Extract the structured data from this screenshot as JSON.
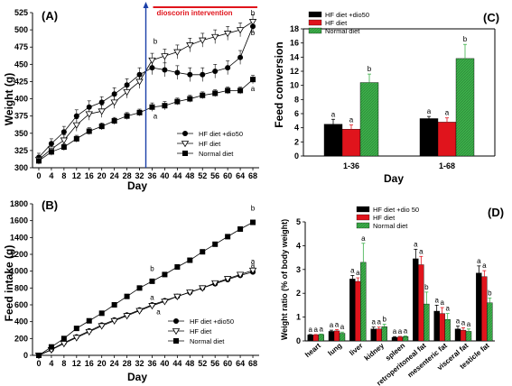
{
  "chart_data": [
    {
      "panel": "(A)",
      "type": "line",
      "xlabel": "Day",
      "ylabel": "Weight (g)",
      "xticks": [
        0,
        4,
        8,
        12,
        16,
        20,
        24,
        28,
        32,
        36,
        40,
        44,
        48,
        52,
        56,
        60,
        64,
        68
      ],
      "ylim": [
        300,
        525
      ],
      "yticks": [
        300,
        325,
        350,
        375,
        400,
        425,
        450,
        475,
        500,
        525
      ],
      "annotation": "dioscorin intervention",
      "intervention_day": 34,
      "legend": [
        "HF diet +dio50",
        "HF diet",
        "Normal diet"
      ],
      "series": [
        {
          "name": "HF diet +dio50",
          "marker": "circle",
          "x": [
            0,
            4,
            8,
            12,
            16,
            20,
            24,
            28,
            32,
            36,
            40,
            44,
            48,
            52,
            56,
            60,
            64,
            68
          ],
          "y": [
            315,
            335,
            352,
            375,
            388,
            395,
            407,
            420,
            435,
            445,
            442,
            438,
            435,
            435,
            440,
            445,
            460,
            505
          ],
          "err": [
            6,
            7,
            8,
            9,
            9,
            8,
            9,
            9,
            10,
            10,
            10,
            10,
            10,
            10,
            10,
            10,
            10,
            10
          ]
        },
        {
          "name": "HF diet",
          "marker": "triangle",
          "x": [
            0,
            4,
            8,
            12,
            16,
            20,
            24,
            28,
            32,
            36,
            40,
            44,
            48,
            52,
            56,
            60,
            64,
            68
          ],
          "y": [
            312,
            327,
            340,
            362,
            378,
            382,
            395,
            410,
            425,
            456,
            462,
            468,
            478,
            485,
            490,
            495,
            500,
            512
          ],
          "err": [
            6,
            7,
            8,
            9,
            9,
            9,
            9,
            9,
            10,
            10,
            10,
            10,
            10,
            10,
            10,
            10,
            10,
            10
          ]
        },
        {
          "name": "Normal diet",
          "marker": "square",
          "x": [
            0,
            4,
            8,
            12,
            16,
            20,
            24,
            28,
            32,
            36,
            40,
            44,
            48,
            52,
            56,
            60,
            64,
            68
          ],
          "y": [
            310,
            323,
            330,
            342,
            353,
            360,
            368,
            375,
            380,
            388,
            390,
            396,
            400,
            405,
            408,
            412,
            412,
            428
          ],
          "err": [
            5,
            5,
            5,
            5,
            5,
            5,
            5,
            5,
            5,
            6,
            6,
            5,
            5,
            5,
            5,
            5,
            5,
            6
          ]
        }
      ],
      "letters": [
        {
          "text": "b",
          "x": 37,
          "y": 480
        },
        {
          "text": "a",
          "x": 37,
          "y": 371
        },
        {
          "text": "b",
          "x": 68,
          "y": 521
        },
        {
          "text": "b",
          "x": 68,
          "y": 492
        },
        {
          "text": "a",
          "x": 68,
          "y": 411
        }
      ]
    },
    {
      "panel": "(B)",
      "type": "line",
      "xlabel": "Day",
      "ylabel": "Feed intake (g)",
      "xticks": [
        0,
        4,
        8,
        12,
        16,
        20,
        24,
        28,
        32,
        36,
        40,
        44,
        48,
        52,
        56,
        60,
        64,
        68
      ],
      "ylim": [
        0,
        1800
      ],
      "yticks": [
        0,
        200,
        400,
        600,
        800,
        1000,
        1200,
        1400,
        1600,
        1800
      ],
      "legend": [
        "HF diet +dio50",
        "HF diet",
        "Normal diet"
      ],
      "series": [
        {
          "name": "HF diet +dio50",
          "marker": "circle",
          "x": [
            0,
            4,
            8,
            12,
            16,
            20,
            24,
            28,
            32,
            36,
            40,
            44,
            48,
            52,
            56,
            60,
            64,
            68
          ],
          "y": [
            0,
            70,
            150,
            220,
            290,
            360,
            420,
            480,
            540,
            600,
            650,
            700,
            750,
            800,
            850,
            900,
            950,
            990
          ]
        },
        {
          "name": "HF diet",
          "marker": "triangle",
          "x": [
            0,
            4,
            8,
            12,
            16,
            20,
            24,
            28,
            32,
            36,
            40,
            44,
            48,
            52,
            56,
            60,
            64,
            68
          ],
          "y": [
            0,
            65,
            140,
            210,
            280,
            350,
            410,
            470,
            530,
            590,
            640,
            700,
            750,
            800,
            860,
            910,
            960,
            1010
          ]
        },
        {
          "name": "Normal diet",
          "marker": "square",
          "x": [
            0,
            4,
            8,
            12,
            16,
            20,
            24,
            28,
            32,
            36,
            40,
            44,
            48,
            52,
            56,
            60,
            64,
            68
          ],
          "y": [
            0,
            100,
            200,
            320,
            410,
            500,
            600,
            700,
            800,
            880,
            960,
            1050,
            1130,
            1230,
            1320,
            1410,
            1500,
            1580
          ]
        }
      ],
      "letters": [
        {
          "text": "b",
          "x": 36,
          "y": 1000
        },
        {
          "text": "a",
          "x": 36,
          "y": 660
        },
        {
          "text": "a",
          "x": 38,
          "y": 490
        },
        {
          "text": "b",
          "x": 68,
          "y": 1720
        },
        {
          "text": "a",
          "x": 68,
          "y": 1090
        },
        {
          "text": "a",
          "x": 68,
          "y": 1040
        }
      ]
    },
    {
      "panel": "(C)",
      "type": "bar",
      "xlabel": "Day",
      "ylabel": "Feed conversion",
      "categories": [
        "1-36",
        "1-68"
      ],
      "ylim": [
        0,
        18
      ],
      "yticks": [
        0,
        2,
        4,
        6,
        8,
        10,
        12,
        14,
        16,
        18
      ],
      "legend": [
        "HF diet +dio50",
        "HF diet",
        "Normal diet"
      ],
      "series": [
        {
          "name": "HF diet +dio50",
          "color": "#000000",
          "values": [
            4.5,
            5.3
          ],
          "err": [
            0.7,
            0.3
          ],
          "letters": [
            "a",
            "a"
          ]
        },
        {
          "name": "HF diet",
          "color": "#e0141c",
          "values": [
            3.8,
            4.8
          ],
          "err": [
            0.6,
            0.6
          ],
          "letters": [
            "a",
            "a"
          ]
        },
        {
          "name": "Normal diet",
          "color": "#3cb04a",
          "values": [
            10.4,
            13.8
          ],
          "err": [
            1.2,
            2.0
          ],
          "letters": [
            "b",
            "b"
          ]
        }
      ]
    },
    {
      "panel": "(D)",
      "type": "bar",
      "ylabel": "Weight ratio (% of body weight)",
      "categories": [
        "heart",
        "lung",
        "liver",
        "kidney",
        "spleen",
        "retroperitoneal fat",
        "mesenteric fat",
        "visceral fat",
        "testicle fat"
      ],
      "ylim": [
        0,
        5
      ],
      "yticks": [
        0,
        1,
        2,
        3,
        4,
        5
      ],
      "legend": [
        "HF diet +dio 50",
        "HF diet",
        "Normal diet"
      ],
      "series": [
        {
          "name": "HF diet +dio 50",
          "color": "#000000",
          "values": [
            0.25,
            0.4,
            2.6,
            0.5,
            0.15,
            3.45,
            1.25,
            0.5,
            2.85
          ],
          "err": [
            0.02,
            0.05,
            0.15,
            0.08,
            0.03,
            0.4,
            0.25,
            0.12,
            0.3
          ],
          "letters": [
            "a",
            "a",
            "a",
            "a",
            "a",
            "a",
            "a",
            "a",
            "a"
          ]
        },
        {
          "name": "HF diet",
          "color": "#e0141c",
          "values": [
            0.25,
            0.42,
            2.5,
            0.5,
            0.16,
            3.2,
            1.15,
            0.45,
            2.7
          ],
          "err": [
            0.02,
            0.06,
            0.15,
            0.08,
            0.03,
            0.35,
            0.25,
            0.1,
            0.25
          ],
          "letters": [
            "a",
            "a",
            "a",
            "a",
            "a",
            "a",
            "a",
            "a",
            "a"
          ]
        },
        {
          "name": "Normal diet",
          "color": "#3cb04a",
          "values": [
            0.27,
            0.32,
            3.3,
            0.6,
            0.18,
            1.55,
            0.9,
            0.4,
            1.6
          ],
          "err": [
            0.02,
            0.05,
            0.8,
            0.1,
            0.03,
            0.5,
            0.25,
            0.1,
            0.2
          ],
          "letters": [
            "a",
            "a",
            "a",
            "b",
            "a",
            "b",
            "a",
            "a",
            "b"
          ]
        }
      ]
    }
  ]
}
